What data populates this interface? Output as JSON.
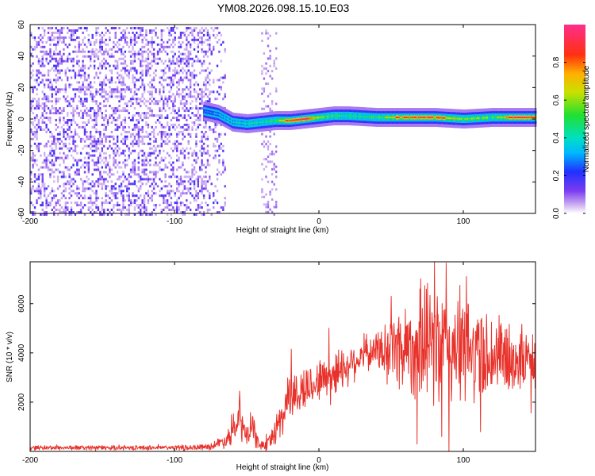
{
  "chart_data": [
    {
      "type": "heatmap",
      "title": "YM08.2026.098.15.10.E03",
      "xlabel": "Height of straight line (km)",
      "ylabel": "Frequency (Hz)",
      "xlim": [
        -200,
        150
      ],
      "ylim": [
        -60,
        60
      ],
      "xticks": [
        "-200",
        "-100",
        "0",
        "100"
      ],
      "yticks": [
        "60",
        "40",
        "20",
        "0",
        "-20",
        "-40",
        "-60"
      ],
      "colorbar": {
        "label": "Normalized spectral amplitude",
        "range": [
          0,
          1
        ],
        "ticks": [
          "0.0",
          "0.2",
          "0.4",
          "0.6",
          "0.8"
        ]
      },
      "description_of_data": {
        "noise_region_x": [
          -200,
          -65
        ],
        "secondary_noise_band_x": [
          -40,
          -30
        ],
        "signal_trace": {
          "x": [
            -80,
            -70,
            -60,
            -50,
            -40,
            -30,
            -20,
            -10,
            0,
            10,
            20,
            40,
            60,
            80,
            100,
            120,
            140,
            150
          ],
          "frequency_hz": [
            5,
            3,
            -2,
            -3,
            -2,
            -1,
            -1,
            0,
            1,
            2,
            2,
            1,
            1,
            1,
            0,
            1,
            1,
            1
          ],
          "normalized_amplitude": [
            0.25,
            0.35,
            0.4,
            0.4,
            0.45,
            0.5,
            0.85,
            0.95,
            0.6,
            0.5,
            0.45,
            0.5,
            0.9,
            0.85,
            0.6,
            0.55,
            0.95,
            0.9
          ]
        }
      }
    },
    {
      "type": "line",
      "title": "",
      "xlabel": "Height of straight line (km)",
      "ylabel": "SNR (10 * v/v)",
      "xlim": [
        -200,
        150
      ],
      "ylim": [
        0,
        7700
      ],
      "xticks": [
        "-200",
        "-100",
        "0",
        "100"
      ],
      "yticks": [
        "2000",
        "4000",
        "6000"
      ],
      "series": [
        {
          "name": "SNR",
          "color": "#e8312a",
          "envelope": {
            "x": [
              -200,
              -150,
              -110,
              -90,
              -75,
              -65,
              -58,
              -55,
              -50,
              -46,
              -43,
              -40,
              -35,
              -30,
              -25,
              -20,
              -18,
              -10,
              0,
              10,
              20,
              30,
              40,
              50,
              60,
              70,
              80,
              90,
              100,
              110,
              120,
              130,
              140,
              150
            ],
            "mean": [
              150,
              150,
              150,
              160,
              200,
              450,
              900,
              1300,
              600,
              1000,
              400,
              250,
              300,
              900,
              1400,
              2600,
              2200,
              2500,
              2900,
              3200,
              3500,
              3900,
              4100,
              4200,
              4300,
              4200,
              4300,
              4200,
              4100,
              4000,
              3900,
              3800,
              3700,
              3700
            ],
            "spread": [
              80,
              80,
              80,
              90,
              110,
              250,
              500,
              700,
              400,
              600,
              250,
              150,
              250,
              500,
              800,
              900,
              900,
              800,
              700,
              800,
              700,
              600,
              600,
              1300,
              1600,
              1800,
              2200,
              2200,
              1900,
              1700,
              1500,
              1300,
              1100,
              900
            ]
          },
          "peaks": [
            {
              "x": 80,
              "y": 7700
            },
            {
              "x": 88,
              "y": 7650
            },
            {
              "x": 102,
              "y": 7100
            },
            {
              "x": 70,
              "y": 6600
            },
            {
              "x": 50,
              "y": 6300
            },
            {
              "x": -55,
              "y": 2450
            },
            {
              "x": -19,
              "y": 4150
            },
            {
              "x": 7,
              "y": 5000
            }
          ],
          "troughs": [
            {
              "x": 68,
              "y": 300
            },
            {
              "x": 90,
              "y": 0
            },
            {
              "x": 85,
              "y": 600
            },
            {
              "x": 112,
              "y": 800
            }
          ]
        }
      ]
    }
  ]
}
